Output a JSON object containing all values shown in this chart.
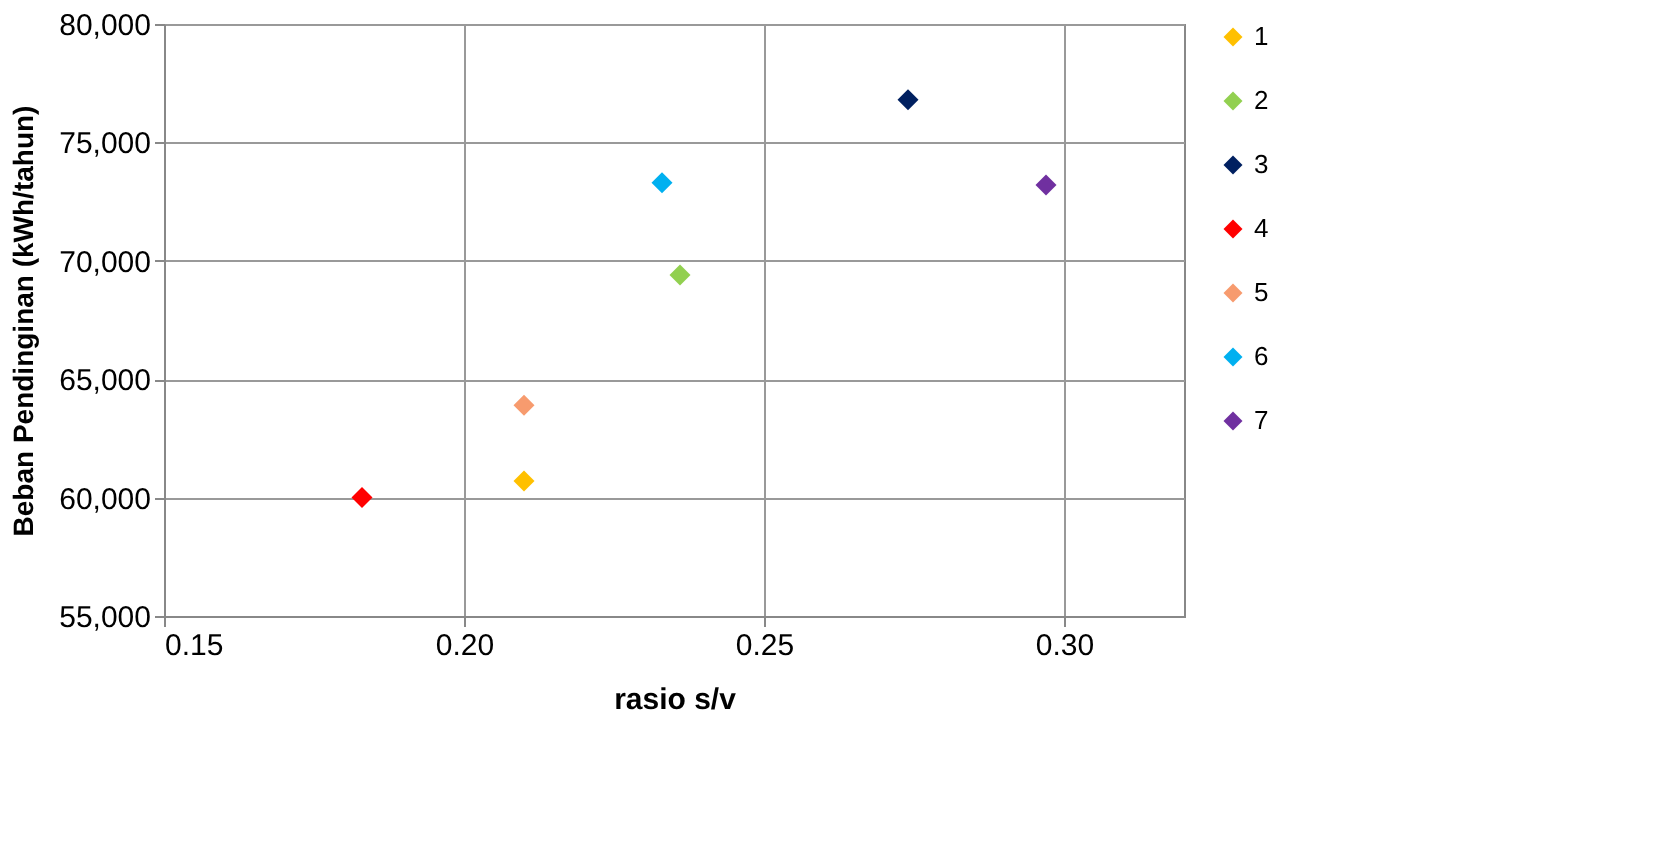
{
  "chart_data": {
    "type": "scatter",
    "xlabel": "rasio s/v",
    "ylabel": "Beban Pendinginan (kWh/tahun)",
    "xlim": [
      0.15,
      0.32
    ],
    "xticks": [
      {
        "value": 0.15,
        "label": "0.15"
      },
      {
        "value": 0.2,
        "label": "0.20"
      },
      {
        "value": 0.25,
        "label": "0.25"
      },
      {
        "value": 0.3,
        "label": "0.30"
      }
    ],
    "ylim": [
      55000,
      80000
    ],
    "yticks": [
      {
        "value": 55000,
        "label": "55,000"
      },
      {
        "value": 60000,
        "label": "60,000"
      },
      {
        "value": 65000,
        "label": "65,000"
      },
      {
        "value": 70000,
        "label": "70,000"
      },
      {
        "value": 75000,
        "label": "75,000"
      },
      {
        "value": 80000,
        "label": "80,000"
      }
    ],
    "grid": true,
    "legend": "right",
    "marker": "diamond",
    "series": [
      {
        "name": "1",
        "color": "#ffc000",
        "x": [
          0.21
        ],
        "values": [
          60700
        ]
      },
      {
        "name": "2",
        "color": "#92d050",
        "x": [
          0.236
        ],
        "values": [
          69400
        ]
      },
      {
        "name": "3",
        "color": "#002060",
        "x": [
          0.274
        ],
        "values": [
          76800
        ]
      },
      {
        "name": "4",
        "color": "#ff0000",
        "x": [
          0.183
        ],
        "values": [
          60000
        ]
      },
      {
        "name": "5",
        "color": "#f79b6e",
        "x": [
          0.21
        ],
        "values": [
          63900
        ]
      },
      {
        "name": "6",
        "color": "#00b0f0",
        "x": [
          0.233
        ],
        "values": [
          73300
        ]
      },
      {
        "name": "7",
        "color": "#7030a0",
        "x": [
          0.297
        ],
        "values": [
          73200
        ]
      }
    ]
  }
}
